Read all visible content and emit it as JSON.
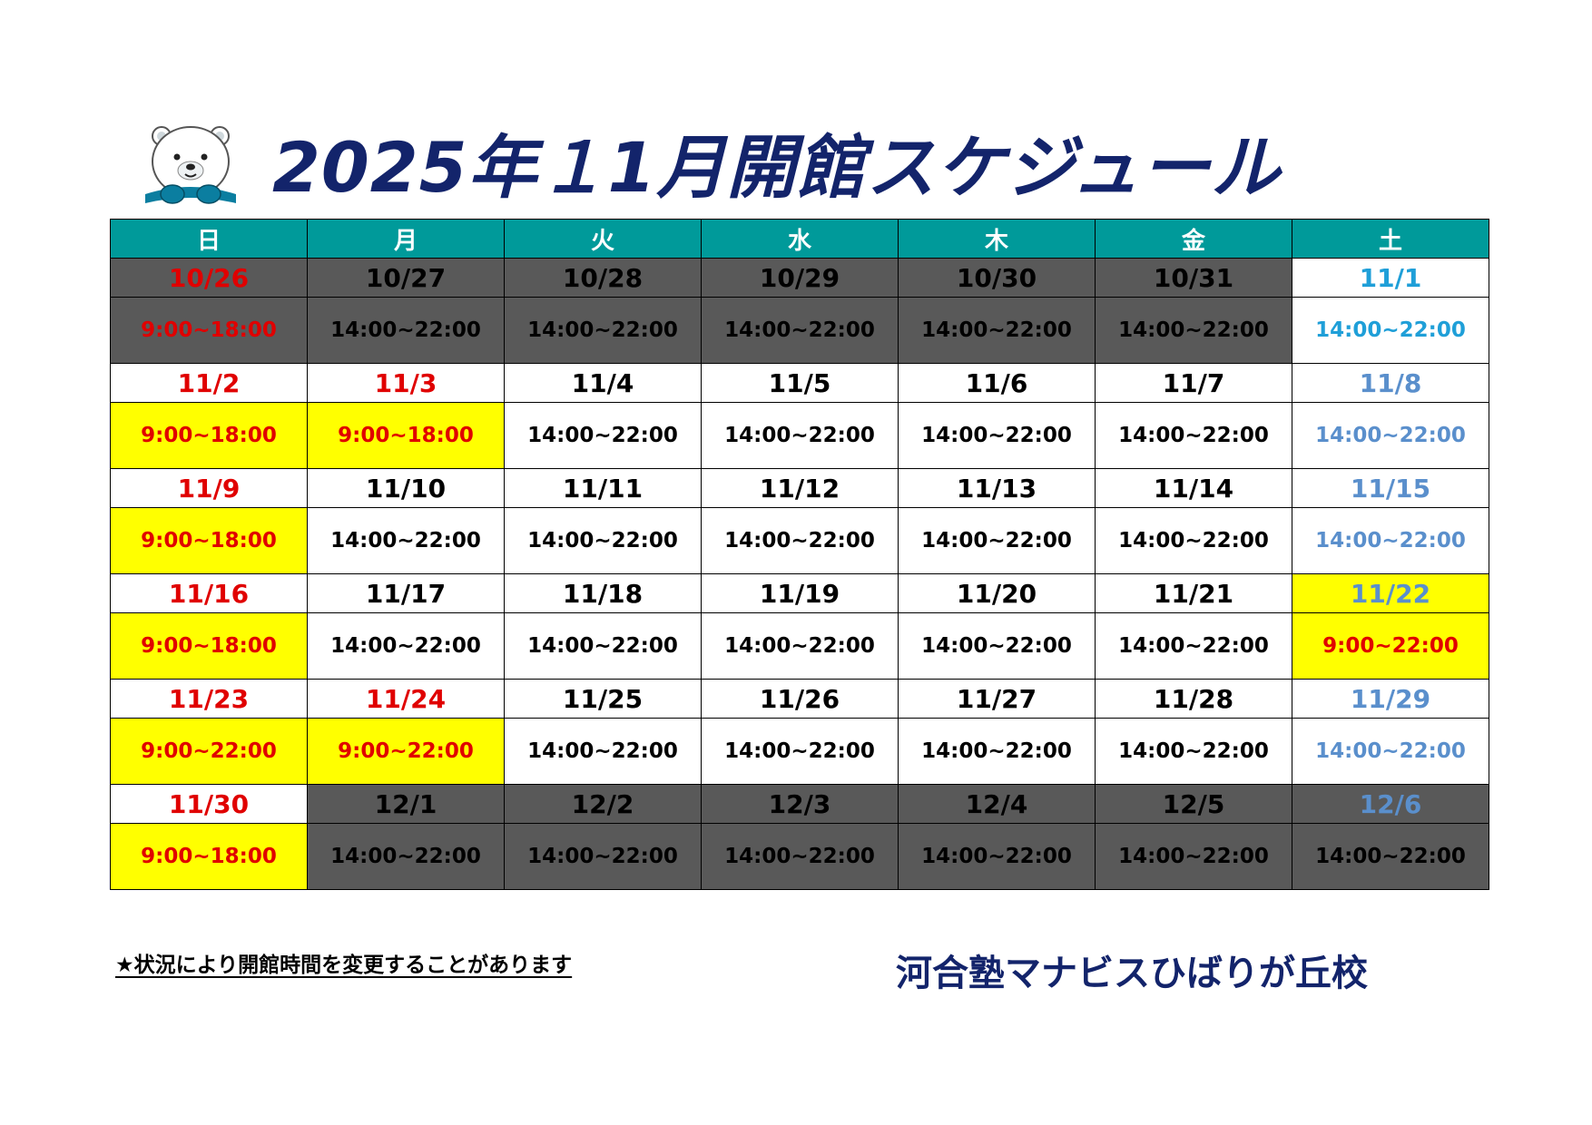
{
  "title": "2025年１1月開館スケジュール",
  "weekdays": [
    "日",
    "月",
    "火",
    "水",
    "木",
    "金",
    "土"
  ],
  "colors": {
    "header_bg": "#009a9a",
    "gray_bg": "#595959",
    "yellow_bg": "#ffff00",
    "red": "#e00000",
    "blue": "#5a8fcc",
    "cyan": "#1f9fd8",
    "navy": "#13246b"
  },
  "weeks": [
    [
      {
        "date": "10/26",
        "time": "9:00~18:00",
        "bg": "gray",
        "color": "red"
      },
      {
        "date": "10/27",
        "time": "14:00~22:00",
        "bg": "gray",
        "color": "black"
      },
      {
        "date": "10/28",
        "time": "14:00~22:00",
        "bg": "gray",
        "color": "black"
      },
      {
        "date": "10/29",
        "time": "14:00~22:00",
        "bg": "gray",
        "color": "black"
      },
      {
        "date": "10/30",
        "time": "14:00~22:00",
        "bg": "gray",
        "color": "black"
      },
      {
        "date": "10/31",
        "time": "14:00~22:00",
        "bg": "gray",
        "color": "black"
      },
      {
        "date": "11/1",
        "time": "14:00~22:00",
        "bg": "white",
        "color": "cyan"
      }
    ],
    [
      {
        "date": "11/2",
        "time": "9:00~18:00",
        "bg": "white",
        "time_bg": "yellow",
        "color": "red"
      },
      {
        "date": "11/3",
        "time": "9:00~18:00",
        "bg": "white",
        "time_bg": "yellow",
        "color": "red"
      },
      {
        "date": "11/4",
        "time": "14:00~22:00",
        "bg": "white",
        "color": "black"
      },
      {
        "date": "11/5",
        "time": "14:00~22:00",
        "bg": "white",
        "color": "black"
      },
      {
        "date": "11/6",
        "time": "14:00~22:00",
        "bg": "white",
        "color": "black"
      },
      {
        "date": "11/7",
        "time": "14:00~22:00",
        "bg": "white",
        "color": "black"
      },
      {
        "date": "11/8",
        "time": "14:00~22:00",
        "bg": "white",
        "color": "blue"
      }
    ],
    [
      {
        "date": "11/9",
        "time": "9:00~18:00",
        "bg": "white",
        "time_bg": "yellow",
        "color": "red"
      },
      {
        "date": "11/10",
        "time": "14:00~22:00",
        "bg": "white",
        "color": "black"
      },
      {
        "date": "11/11",
        "time": "14:00~22:00",
        "bg": "white",
        "color": "black"
      },
      {
        "date": "11/12",
        "time": "14:00~22:00",
        "bg": "white",
        "color": "black"
      },
      {
        "date": "11/13",
        "time": "14:00~22:00",
        "bg": "white",
        "color": "black"
      },
      {
        "date": "11/14",
        "time": "14:00~22:00",
        "bg": "white",
        "color": "black"
      },
      {
        "date": "11/15",
        "time": "14:00~22:00",
        "bg": "white",
        "color": "blue"
      }
    ],
    [
      {
        "date": "11/16",
        "time": "9:00~18:00",
        "bg": "white",
        "time_bg": "yellow",
        "color": "red"
      },
      {
        "date": "11/17",
        "time": "14:00~22:00",
        "bg": "white",
        "color": "black"
      },
      {
        "date": "11/18",
        "time": "14:00~22:00",
        "bg": "white",
        "color": "black"
      },
      {
        "date": "11/19",
        "time": "14:00~22:00",
        "bg": "white",
        "color": "black"
      },
      {
        "date": "11/20",
        "time": "14:00~22:00",
        "bg": "white",
        "color": "black"
      },
      {
        "date": "11/21",
        "time": "14:00~22:00",
        "bg": "white",
        "color": "black"
      },
      {
        "date": "11/22",
        "time": "9:00~22:00",
        "bg": "yellow",
        "time_bg": "yellow",
        "color": "blue",
        "time_color": "red"
      }
    ],
    [
      {
        "date": "11/23",
        "time": "9:00~22:00",
        "bg": "white",
        "time_bg": "yellow",
        "color": "red"
      },
      {
        "date": "11/24",
        "time": "9:00~22:00",
        "bg": "white",
        "time_bg": "yellow",
        "color": "red"
      },
      {
        "date": "11/25",
        "time": "14:00~22:00",
        "bg": "white",
        "color": "black"
      },
      {
        "date": "11/26",
        "time": "14:00~22:00",
        "bg": "white",
        "color": "black"
      },
      {
        "date": "11/27",
        "time": "14:00~22:00",
        "bg": "white",
        "color": "black"
      },
      {
        "date": "11/28",
        "time": "14:00~22:00",
        "bg": "white",
        "color": "black"
      },
      {
        "date": "11/29",
        "time": "14:00~22:00",
        "bg": "white",
        "color": "blue"
      }
    ],
    [
      {
        "date": "11/30",
        "time": "9:00~18:00",
        "bg": "white",
        "time_bg": "yellow",
        "color": "red"
      },
      {
        "date": "12/1",
        "time": "14:00~22:00",
        "bg": "gray",
        "color": "black"
      },
      {
        "date": "12/2",
        "time": "14:00~22:00",
        "bg": "gray",
        "color": "black"
      },
      {
        "date": "12/3",
        "time": "14:00~22:00",
        "bg": "gray",
        "color": "black"
      },
      {
        "date": "12/4",
        "time": "14:00~22:00",
        "bg": "gray",
        "color": "black"
      },
      {
        "date": "12/5",
        "time": "14:00~22:00",
        "bg": "gray",
        "color": "black"
      },
      {
        "date": "12/6",
        "time": "14:00~22:00",
        "bg": "gray",
        "color": "blue",
        "time_color": "black"
      }
    ]
  ],
  "note": "★状況により開館時間を変更することがあります",
  "school_name": "河合塾マナビスひばりが丘校",
  "mascot_icon": "polar-bear-mascot-icon"
}
